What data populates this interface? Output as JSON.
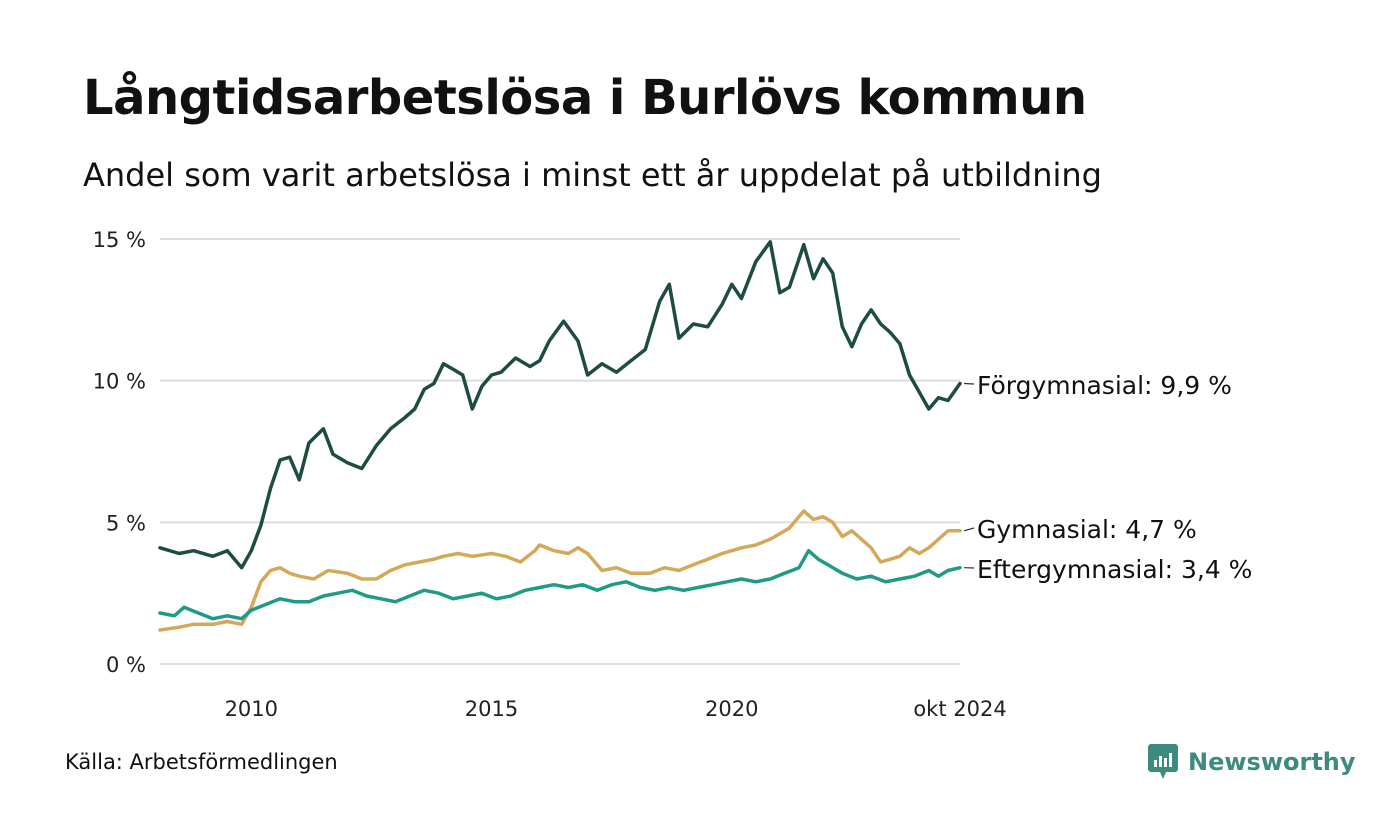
{
  "title": "Långtidsarbetslösa i Burlövs kommun",
  "subtitle": "Andel som varit arbetslösa i minst ett år uppdelat på utbildning",
  "source": "Källa: Arbetsförmedlingen",
  "brand": {
    "name": "Newsworthy",
    "icon": "newsworthy-logo-icon",
    "color": "#3d8a7e"
  },
  "chart_data": {
    "type": "line",
    "ylim": [
      0,
      15
    ],
    "y_ticks": [
      {
        "value": 0,
        "label": "0 %"
      },
      {
        "value": 5,
        "label": "5 %"
      },
      {
        "value": 10,
        "label": "10 %"
      },
      {
        "value": 15,
        "label": "15 %"
      }
    ],
    "x_range": [
      2008.1,
      2024.75
    ],
    "x_ticks": [
      {
        "value": 2010,
        "label": "2010"
      },
      {
        "value": 2015,
        "label": "2015"
      },
      {
        "value": 2020,
        "label": "2020"
      },
      {
        "value": 2024.75,
        "label": "okt 2024"
      }
    ],
    "grid": true,
    "legend": "end-labels",
    "series": [
      {
        "name": "Förgymnasial",
        "end_label": "Förgymnasial: 9,9 %",
        "color": "#1d4d42",
        "x": [
          2008.1,
          2008.5,
          2008.8,
          2009.2,
          2009.5,
          2009.8,
          2010.0,
          2010.2,
          2010.4,
          2010.6,
          2010.8,
          2011.0,
          2011.2,
          2011.5,
          2011.7,
          2012.0,
          2012.3,
          2012.6,
          2012.9,
          2013.2,
          2013.4,
          2013.6,
          2013.8,
          2014.0,
          2014.2,
          2014.4,
          2014.6,
          2014.8,
          2015.0,
          2015.2,
          2015.5,
          2015.8,
          2016.0,
          2016.2,
          2016.5,
          2016.8,
          2017.0,
          2017.3,
          2017.6,
          2017.9,
          2018.2,
          2018.5,
          2018.7,
          2018.9,
          2019.2,
          2019.5,
          2019.8,
          2020.0,
          2020.2,
          2020.5,
          2020.8,
          2021.0,
          2021.2,
          2021.5,
          2021.7,
          2021.9,
          2022.1,
          2022.3,
          2022.5,
          2022.7,
          2022.9,
          2023.1,
          2023.3,
          2023.5,
          2023.7,
          2023.9,
          2024.1,
          2024.3,
          2024.5,
          2024.75
        ],
        "values": [
          4.1,
          3.9,
          4.0,
          3.8,
          4.0,
          3.4,
          4.0,
          4.9,
          6.2,
          7.2,
          7.3,
          6.5,
          7.8,
          8.3,
          7.4,
          7.1,
          6.9,
          7.7,
          8.3,
          8.7,
          9.0,
          9.7,
          9.9,
          10.6,
          10.4,
          10.2,
          9.0,
          9.8,
          10.2,
          10.3,
          10.8,
          10.5,
          10.7,
          11.4,
          12.1,
          11.4,
          10.2,
          10.6,
          10.3,
          10.7,
          11.1,
          12.8,
          13.4,
          11.5,
          12.0,
          11.9,
          12.7,
          13.4,
          12.9,
          14.2,
          14.9,
          13.1,
          13.3,
          14.8,
          13.6,
          14.3,
          13.8,
          11.9,
          11.2,
          12.0,
          12.5,
          12.0,
          11.7,
          11.3,
          10.2,
          9.6,
          9.0,
          9.4,
          9.3,
          9.9
        ]
      },
      {
        "name": "Gymnasial",
        "end_label": "Gymnasial: 4,7 %",
        "color": "#d4a858",
        "x": [
          2008.1,
          2008.5,
          2008.8,
          2009.2,
          2009.5,
          2009.8,
          2010.0,
          2010.2,
          2010.4,
          2010.6,
          2010.8,
          2011.0,
          2011.3,
          2011.6,
          2012.0,
          2012.3,
          2012.6,
          2012.9,
          2013.2,
          2013.5,
          2013.8,
          2014.0,
          2014.3,
          2014.6,
          2015.0,
          2015.3,
          2015.6,
          2015.9,
          2016.0,
          2016.3,
          2016.6,
          2016.8,
          2017.0,
          2017.3,
          2017.6,
          2017.9,
          2018.3,
          2018.6,
          2018.9,
          2019.2,
          2019.5,
          2019.8,
          2020.0,
          2020.2,
          2020.5,
          2020.8,
          2021.0,
          2021.2,
          2021.5,
          2021.7,
          2021.9,
          2022.1,
          2022.3,
          2022.5,
          2022.7,
          2022.9,
          2023.1,
          2023.3,
          2023.5,
          2023.7,
          2023.9,
          2024.1,
          2024.3,
          2024.5,
          2024.75
        ],
        "values": [
          1.2,
          1.3,
          1.4,
          1.4,
          1.5,
          1.4,
          2.0,
          2.9,
          3.3,
          3.4,
          3.2,
          3.1,
          3.0,
          3.3,
          3.2,
          3.0,
          3.0,
          3.3,
          3.5,
          3.6,
          3.7,
          3.8,
          3.9,
          3.8,
          3.9,
          3.8,
          3.6,
          4.0,
          4.2,
          4.0,
          3.9,
          4.1,
          3.9,
          3.3,
          3.4,
          3.2,
          3.2,
          3.4,
          3.3,
          3.5,
          3.7,
          3.9,
          4.0,
          4.1,
          4.2,
          4.4,
          4.6,
          4.8,
          5.4,
          5.1,
          5.2,
          5.0,
          4.5,
          4.7,
          4.4,
          4.1,
          3.6,
          3.7,
          3.8,
          4.1,
          3.9,
          4.1,
          4.4,
          4.7,
          4.7
        ]
      },
      {
        "name": "Eftergymnasial",
        "end_label": "Eftergymnasial: 3,4 %",
        "color": "#1e9a86",
        "x": [
          2008.1,
          2008.4,
          2008.6,
          2008.9,
          2009.2,
          2009.5,
          2009.8,
          2010.0,
          2010.3,
          2010.6,
          2010.9,
          2011.2,
          2011.5,
          2011.8,
          2012.1,
          2012.4,
          2012.7,
          2013.0,
          2013.3,
          2013.6,
          2013.9,
          2014.2,
          2014.5,
          2014.8,
          2015.1,
          2015.4,
          2015.7,
          2016.0,
          2016.3,
          2016.6,
          2016.9,
          2017.2,
          2017.5,
          2017.8,
          2018.1,
          2018.4,
          2018.7,
          2019.0,
          2019.3,
          2019.6,
          2019.9,
          2020.2,
          2020.5,
          2020.8,
          2021.1,
          2021.4,
          2021.6,
          2021.8,
          2022.0,
          2022.3,
          2022.6,
          2022.9,
          2023.2,
          2023.5,
          2023.8,
          2024.1,
          2024.3,
          2024.5,
          2024.75
        ],
        "values": [
          1.8,
          1.7,
          2.0,
          1.8,
          1.6,
          1.7,
          1.6,
          1.9,
          2.1,
          2.3,
          2.2,
          2.2,
          2.4,
          2.5,
          2.6,
          2.4,
          2.3,
          2.2,
          2.4,
          2.6,
          2.5,
          2.3,
          2.4,
          2.5,
          2.3,
          2.4,
          2.6,
          2.7,
          2.8,
          2.7,
          2.8,
          2.6,
          2.8,
          2.9,
          2.7,
          2.6,
          2.7,
          2.6,
          2.7,
          2.8,
          2.9,
          3.0,
          2.9,
          3.0,
          3.2,
          3.4,
          4.0,
          3.7,
          3.5,
          3.2,
          3.0,
          3.1,
          2.9,
          3.0,
          3.1,
          3.3,
          3.1,
          3.3,
          3.4
        ]
      }
    ]
  }
}
